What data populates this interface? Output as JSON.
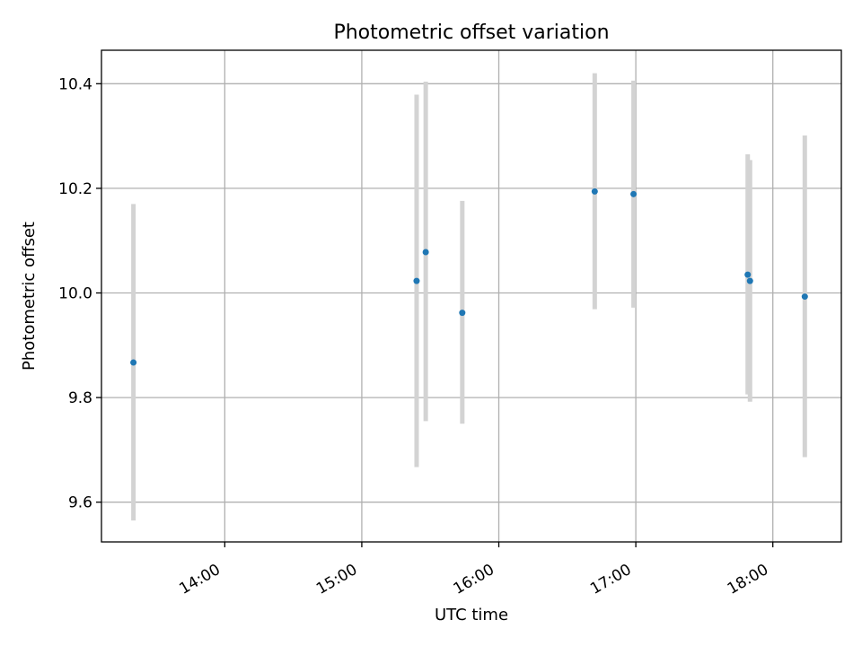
{
  "chart_data": {
    "type": "scatter",
    "title": "Photometric offset variation",
    "xlabel": "UTC time",
    "ylabel": "Photometric offset",
    "x_tick_labels": [
      "14:00",
      "15:00",
      "16:00",
      "17:00",
      "18:00"
    ],
    "x_tick_times": [
      "14:00",
      "15:00",
      "16:00",
      "17:00",
      "18:00"
    ],
    "y_tick_labels": [
      "9.6",
      "9.8",
      "10.0",
      "10.2",
      "10.4"
    ],
    "y_ticks": [
      9.6,
      9.8,
      10.0,
      10.2,
      10.4
    ],
    "xlim": [
      "13:06",
      "18:30"
    ],
    "ylim": [
      9.524,
      10.464
    ],
    "grid": true,
    "series": [
      {
        "color": "#1f77b4",
        "error_bar_color": "#d3d3d3",
        "points": [
          {
            "x": "13:20",
            "y": 9.867,
            "err_low": 9.565,
            "err_high": 10.17
          },
          {
            "x": "15:24",
            "y": 10.023,
            "err_low": 9.667,
            "err_high": 10.379
          },
          {
            "x": "15:28",
            "y": 10.078,
            "err_low": 9.755,
            "err_high": 10.404
          },
          {
            "x": "15:44",
            "y": 9.962,
            "err_low": 9.75,
            "err_high": 10.176
          },
          {
            "x": "16:42",
            "y": 10.194,
            "err_low": 9.969,
            "err_high": 10.42
          },
          {
            "x": "16:59",
            "y": 10.189,
            "err_low": 9.972,
            "err_high": 10.406
          },
          {
            "x": "17:49",
            "y": 10.035,
            "err_low": 9.806,
            "err_high": 10.265
          },
          {
            "x": "17:50",
            "y": 10.023,
            "err_low": 9.792,
            "err_high": 10.254
          },
          {
            "x": "18:14",
            "y": 9.993,
            "err_low": 9.686,
            "err_high": 10.301
          }
        ]
      }
    ]
  }
}
